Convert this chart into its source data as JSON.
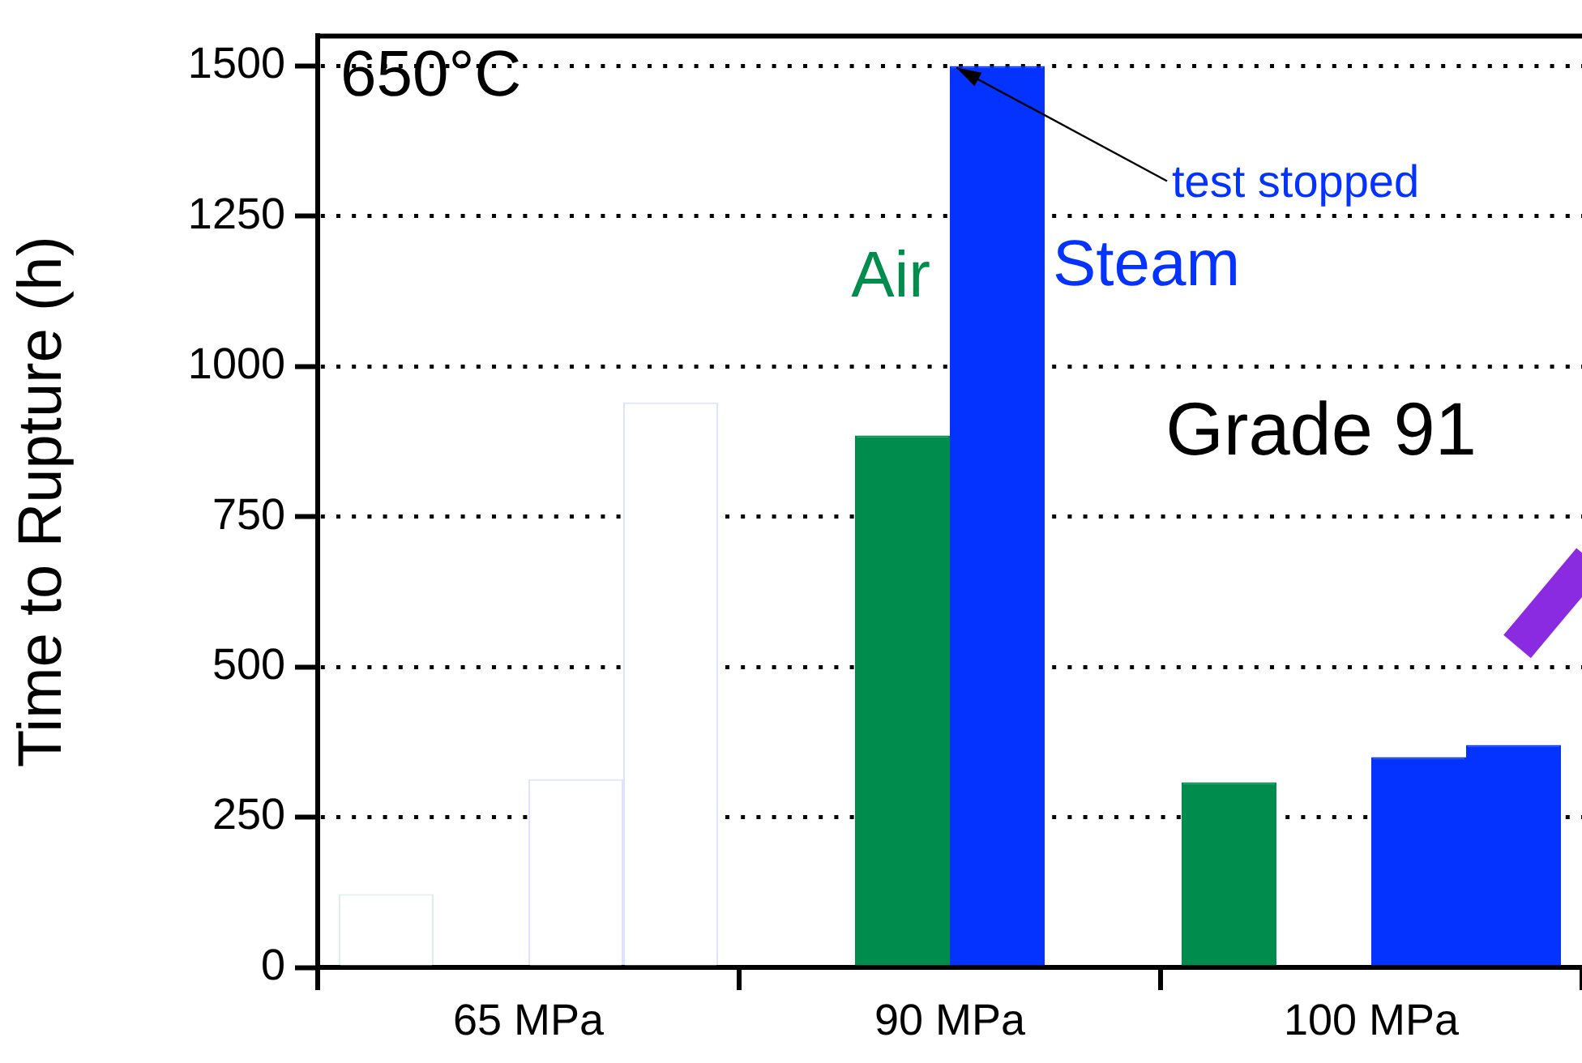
{
  "chart_data": {
    "type": "bar",
    "ylabel": "Time to Rupture (h)",
    "categories": [
      "65 MPa",
      "90 MPa",
      "100 MPa"
    ],
    "series": [
      {
        "color": "#008c4c",
        "colors": [
          "#ffffff",
          "#008c4c",
          "#008c4c"
        ],
        "values": [
          122,
          null,
          308
        ]
      },
      {
        "name": "Air",
        "color": "#008c4c",
        "values": [
          null,
          885,
          null
        ]
      },
      {
        "name": "Steam",
        "color": "#0432ff",
        "colors": [
          "#ffffff",
          "#0432ff",
          "#0432ff"
        ],
        "values": [
          313,
          1500,
          350
        ]
      },
      {
        "color": "#0432ff",
        "colors": [
          "#ffffff",
          "#0432ff",
          "#0432ff"
        ],
        "values": [
          940,
          null,
          370
        ]
      }
    ],
    "ylim": [
      0,
      1550
    ],
    "yticks": [
      0,
      250,
      500,
      750,
      1000,
      1250,
      1500
    ],
    "grid": "y",
    "legend": false,
    "annotations": [
      "650°C",
      "Grade 91",
      {
        "text": "test stopped",
        "x": "90 MPa",
        "y": 1500
      }
    ]
  }
}
